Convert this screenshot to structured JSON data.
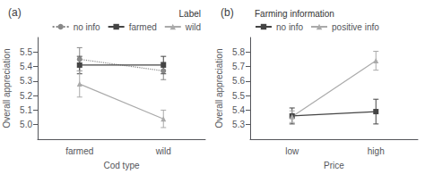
{
  "chart_data": [
    {
      "type": "line",
      "title": "(a)",
      "xlabel": "Cod type",
      "ylabel": "Overall appreciation",
      "categories": [
        "farmed",
        "wild"
      ],
      "ylim": [
        4.9,
        5.6
      ],
      "yticks": [
        {
          "value": 5.0,
          "label": "5.0"
        },
        5.1,
        5.2,
        5.3,
        5.4,
        5.5
      ],
      "grid": false,
      "legend": "top right",
      "legend_title": "Label",
      "series": [
        {
          "name": "no info",
          "color": "#888888",
          "marker": "circle",
          "line_style": "dotted",
          "values": [
            5.45,
            5.37
          ],
          "errors": [
            0.08,
            0.06
          ]
        },
        {
          "name": "farmed",
          "color": "#444444",
          "marker": "square",
          "line_style": "solid",
          "values": [
            5.41,
            5.41
          ],
          "errors": [
            0.06,
            0.06
          ]
        },
        {
          "name": "wild",
          "color": "#aaaaaa",
          "marker": "triangle",
          "line_style": "solid",
          "values": [
            5.28,
            5.04
          ],
          "errors": [
            0.09,
            0.06
          ]
        }
      ]
    },
    {
      "type": "line",
      "title": "(b)",
      "xlabel": "Price",
      "ylabel": "Overall appreciation",
      "categories": [
        "low",
        "high"
      ],
      "ylim": [
        5.2,
        5.9
      ],
      "yticks": [
        5.3,
        5.4,
        5.5,
        5.6,
        5.7,
        5.8
      ],
      "grid": false,
      "legend": "top left",
      "legend_title": "Farming information",
      "series": [
        {
          "name": "no info",
          "color": "#444444",
          "marker": "square",
          "line_style": "solid",
          "values": [
            5.36,
            5.39
          ],
          "errors": [
            0.055,
            0.085
          ]
        },
        {
          "name": "positive info",
          "color": "#aaaaaa",
          "marker": "triangle",
          "line_style": "solid",
          "values": [
            5.355,
            5.74
          ],
          "errors": [
            0.04,
            0.065
          ]
        }
      ]
    }
  ]
}
